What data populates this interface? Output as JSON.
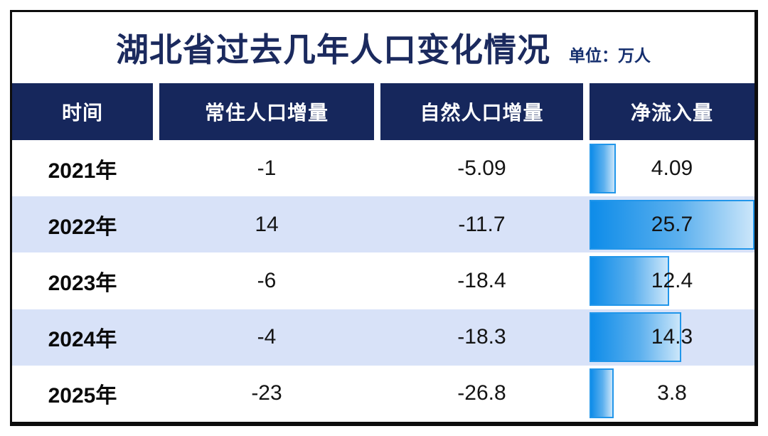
{
  "title": {
    "text": "湖北省过去几年人口变化情况",
    "unit_label": "单位：万人"
  },
  "table": {
    "columns": [
      "时间",
      "常住人口增量",
      "自然人口增量",
      "净流入量"
    ],
    "rows": [
      {
        "year": "2021年",
        "resident_change": "-1",
        "natural_change": "-5.09",
        "net_inflow": "4.09",
        "net_inflow_value": 4.09
      },
      {
        "year": "2022年",
        "resident_change": "14",
        "natural_change": "-11.7",
        "net_inflow": "25.7",
        "net_inflow_value": 25.7
      },
      {
        "year": "2023年",
        "resident_change": "-6",
        "natural_change": "-18.4",
        "net_inflow": "12.4",
        "net_inflow_value": 12.4
      },
      {
        "year": "2024年",
        "resident_change": "-4",
        "natural_change": "-18.3",
        "net_inflow": "14.3",
        "net_inflow_value": 14.3
      },
      {
        "year": "2025年",
        "resident_change": "-23",
        "natural_change": "-26.8",
        "net_inflow": "3.8",
        "net_inflow_value": 3.8
      }
    ]
  },
  "chart_data": {
    "type": "table",
    "title": "湖北省过去几年人口变化情况",
    "unit": "单位：万人",
    "columns": [
      "时间",
      "常住人口增量",
      "自然人口增量",
      "净流入量"
    ],
    "categories": [
      "2021年",
      "2022年",
      "2023年",
      "2024年",
      "2025年"
    ],
    "series": [
      {
        "name": "常住人口增量",
        "values": [
          -1,
          14,
          -6,
          -4,
          -23
        ]
      },
      {
        "name": "自然人口增量",
        "values": [
          -5.09,
          -11.7,
          -18.4,
          -18.3,
          -26.8
        ]
      },
      {
        "name": "净流入量",
        "values": [
          4.09,
          25.7,
          12.4,
          14.3,
          3.8
        ],
        "display": "bar-in-cell"
      }
    ],
    "bar_scale_max": 25.7,
    "layout": {
      "row_alt_color": "#d8e2f8",
      "header_color": "#16275c",
      "bar_gradient": [
        "#0e8ce9",
        "#cbe6fa"
      ],
      "bar_border_color": "#2196ea",
      "grid": "off",
      "legend": "none"
    }
  }
}
